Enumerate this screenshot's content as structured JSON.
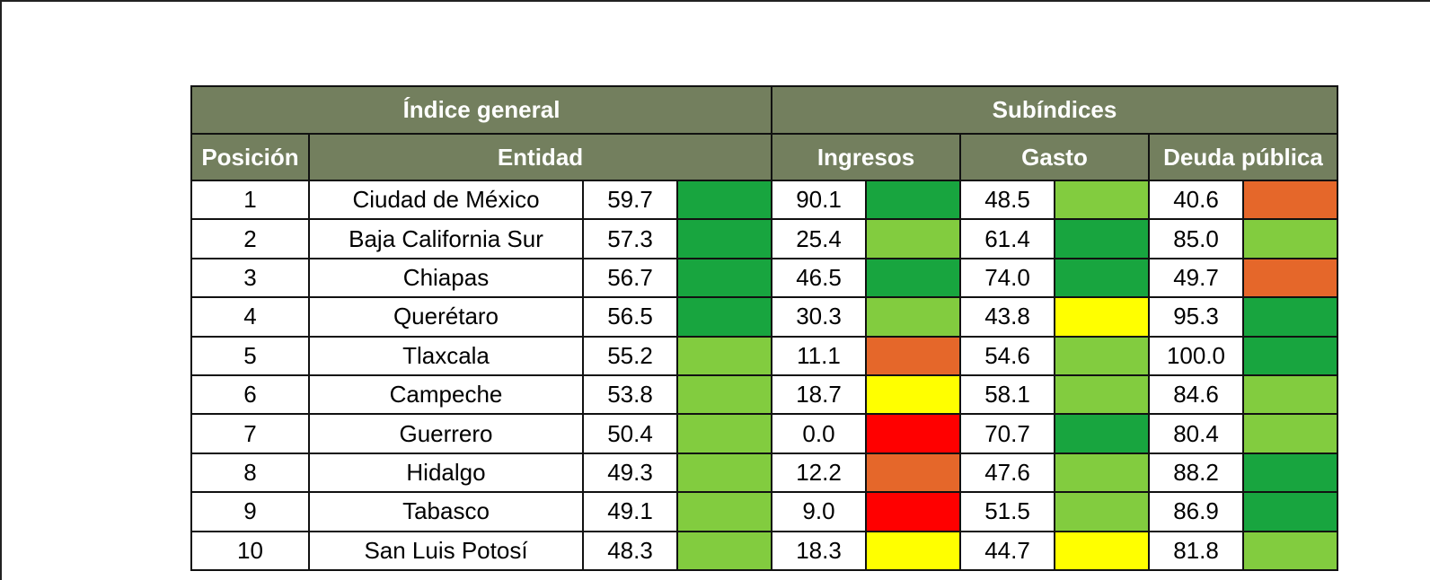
{
  "header": {
    "group_general": "Índice general",
    "group_sub": "Subíndices",
    "col_position": "Posición",
    "col_entity": "Entidad",
    "col_income": "Ingresos",
    "col_spending": "Gasto",
    "col_debt": "Deuda pública"
  },
  "colors": {
    "dark_green": "#18a53f",
    "light_green": "#82cc3f",
    "yellow": "#ffff00",
    "orange": "#e5672a",
    "red": "#ff0000",
    "header_bg": "#737f5e"
  },
  "rows": [
    {
      "position": "1",
      "entity": "Ciudad de México",
      "general": "59.7",
      "general_color": "#18a53f",
      "income": "90.1",
      "income_color": "#18a53f",
      "spending": "48.5",
      "spending_color": "#82cc3f",
      "debt": "40.6",
      "debt_color": "#e5672a"
    },
    {
      "position": "2",
      "entity": "Baja California Sur",
      "general": "57.3",
      "general_color": "#18a53f",
      "income": "25.4",
      "income_color": "#82cc3f",
      "spending": "61.4",
      "spending_color": "#18a53f",
      "debt": "85.0",
      "debt_color": "#82cc3f"
    },
    {
      "position": "3",
      "entity": "Chiapas",
      "general": "56.7",
      "general_color": "#18a53f",
      "income": "46.5",
      "income_color": "#18a53f",
      "spending": "74.0",
      "spending_color": "#18a53f",
      "debt": "49.7",
      "debt_color": "#e5672a"
    },
    {
      "position": "4",
      "entity": "Querétaro",
      "general": "56.5",
      "general_color": "#18a53f",
      "income": "30.3",
      "income_color": "#82cc3f",
      "spending": "43.8",
      "spending_color": "#ffff00",
      "debt": "95.3",
      "debt_color": "#18a53f"
    },
    {
      "position": "5",
      "entity": "Tlaxcala",
      "general": "55.2",
      "general_color": "#82cc3f",
      "income": "11.1",
      "income_color": "#e5672a",
      "spending": "54.6",
      "spending_color": "#82cc3f",
      "debt": "100.0",
      "debt_color": "#18a53f"
    },
    {
      "position": "6",
      "entity": "Campeche",
      "general": "53.8",
      "general_color": "#82cc3f",
      "income": "18.7",
      "income_color": "#ffff00",
      "spending": "58.1",
      "spending_color": "#82cc3f",
      "debt": "84.6",
      "debt_color": "#82cc3f"
    },
    {
      "position": "7",
      "entity": "Guerrero",
      "general": "50.4",
      "general_color": "#82cc3f",
      "income": "0.0",
      "income_color": "#ff0000",
      "spending": "70.7",
      "spending_color": "#18a53f",
      "debt": "80.4",
      "debt_color": "#82cc3f"
    },
    {
      "position": "8",
      "entity": "Hidalgo",
      "general": "49.3",
      "general_color": "#82cc3f",
      "income": "12.2",
      "income_color": "#e5672a",
      "spending": "47.6",
      "spending_color": "#82cc3f",
      "debt": "88.2",
      "debt_color": "#18a53f"
    },
    {
      "position": "9",
      "entity": "Tabasco",
      "general": "49.1",
      "general_color": "#82cc3f",
      "income": "9.0",
      "income_color": "#ff0000",
      "spending": "51.5",
      "spending_color": "#82cc3f",
      "debt": "86.9",
      "debt_color": "#18a53f"
    },
    {
      "position": "10",
      "entity": "San Luis Potosí",
      "general": "48.3",
      "general_color": "#82cc3f",
      "income": "18.3",
      "income_color": "#ffff00",
      "spending": "44.7",
      "spending_color": "#ffff00",
      "debt": "81.8",
      "debt_color": "#82cc3f"
    }
  ]
}
